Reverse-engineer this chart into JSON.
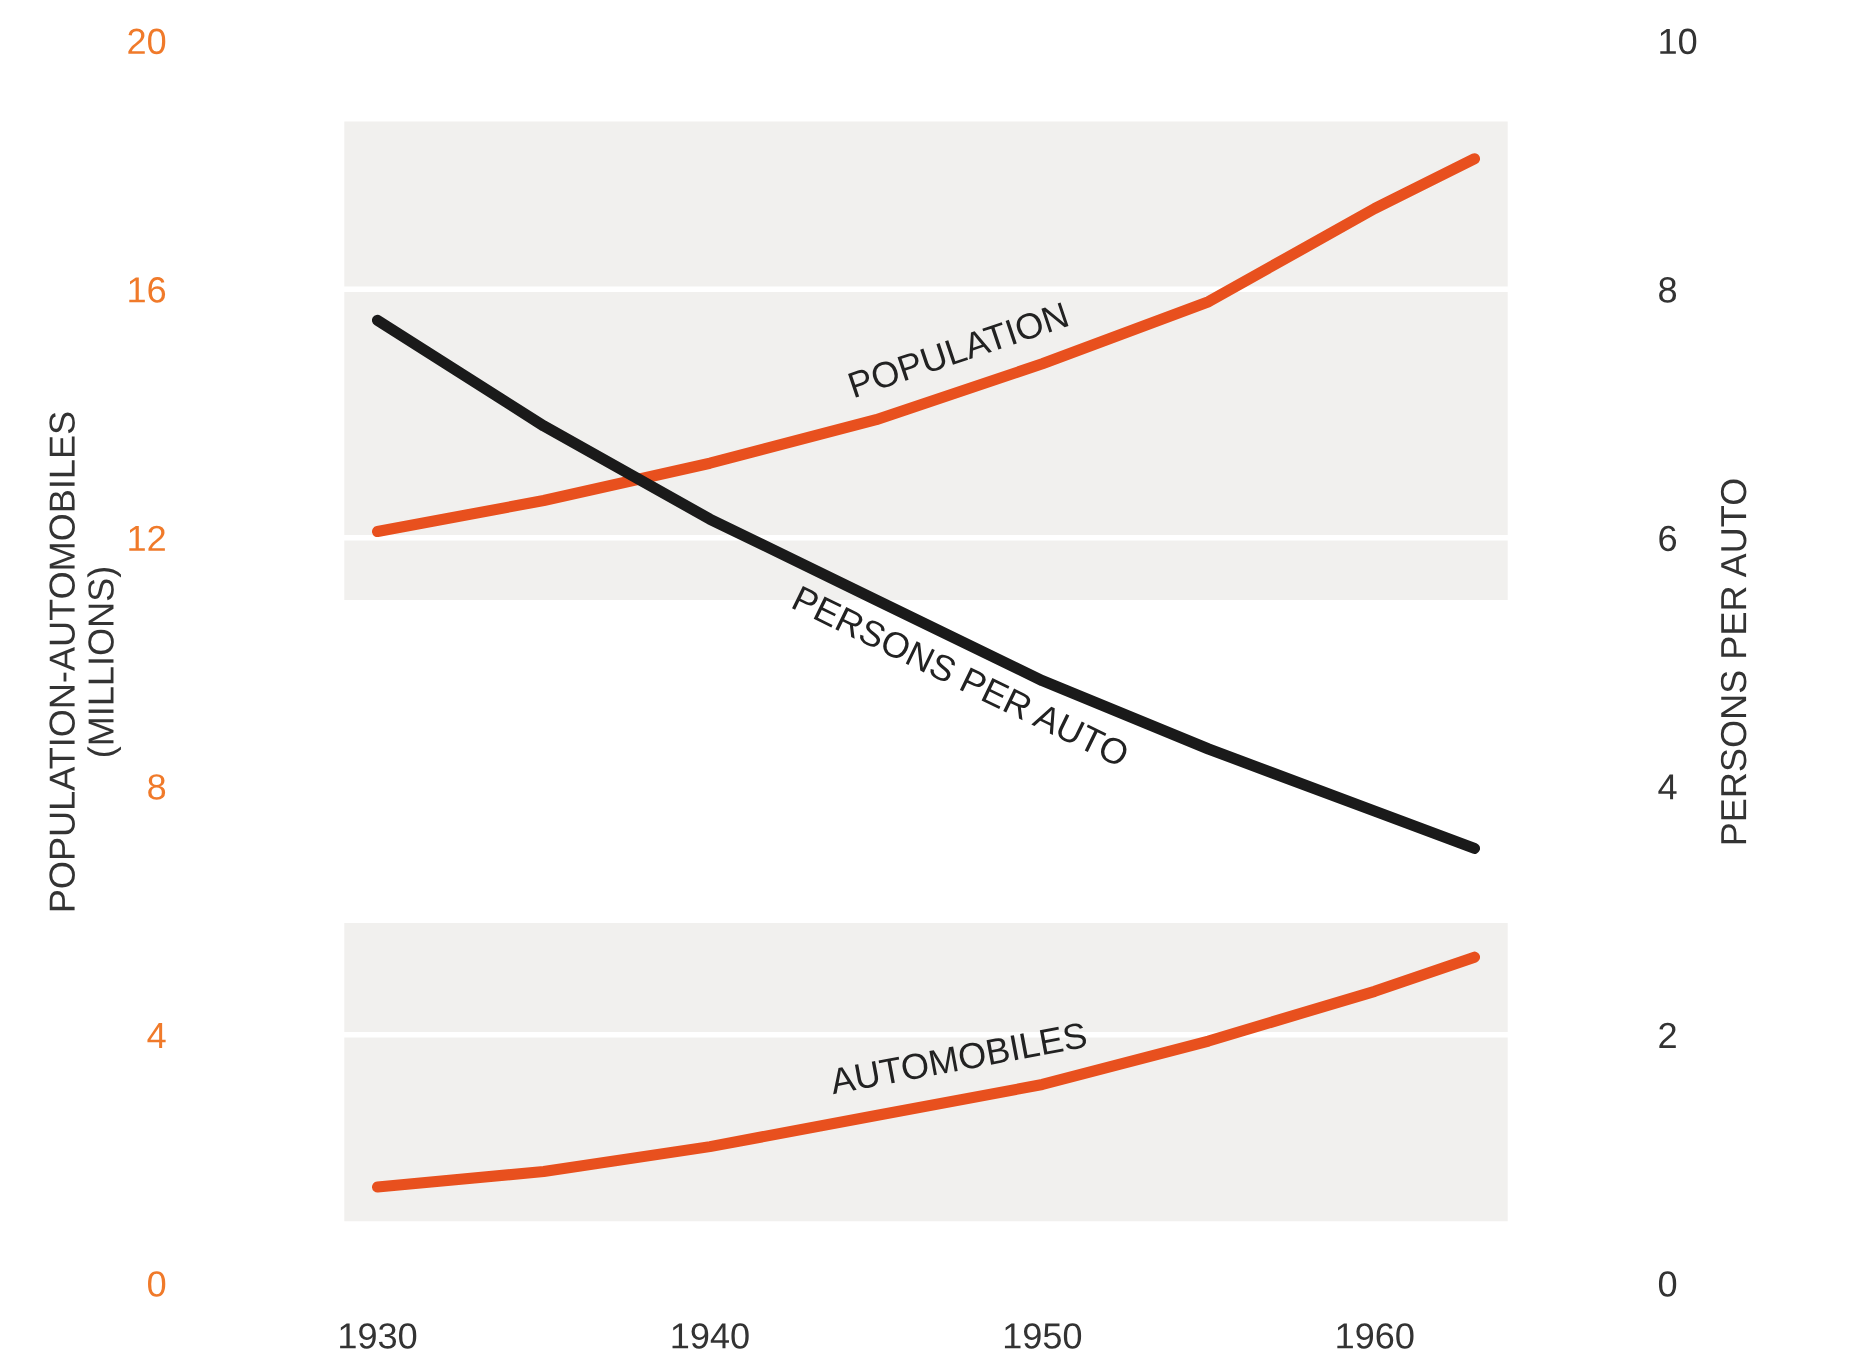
{
  "chart_data": {
    "type": "line",
    "ylabel": "POPULATION-AUTOMOBILES\n(MILLIONS)",
    "y2label": "PERSONS PER AUTO",
    "x": [
      1930,
      1935,
      1940,
      1945,
      1950,
      1955,
      1960,
      1963
    ],
    "xlim": [
      1927,
      1966
    ],
    "xticks": [
      1930,
      1940,
      1950,
      1960
    ],
    "ylim": [
      0,
      20
    ],
    "yticks": [
      0,
      4,
      8,
      12,
      16,
      20
    ],
    "y2lim": [
      0,
      10
    ],
    "y2ticks": [
      0,
      2,
      4,
      6,
      8,
      10
    ],
    "grid": "y",
    "legend": false,
    "marker": "none",
    "line_style": "solid",
    "series": [
      {
        "name": "POPULATION",
        "color": "#e8501e",
        "values": [
          12.1,
          12.6,
          13.2,
          13.9,
          14.8,
          15.8,
          17.3,
          18.1
        ]
      },
      {
        "name": "AUTOMOBILES",
        "color": "#e8501e",
        "values": [
          1.55,
          1.8,
          2.2,
          2.7,
          3.2,
          3.9,
          4.7,
          5.25
        ]
      },
      {
        "name": "PERSONS PER AUTO",
        "color": "#1a1a1a",
        "axis": "y2",
        "values": [
          7.75,
          6.9,
          6.15,
          5.5,
          4.85,
          4.3,
          3.8,
          3.5
        ]
      }
    ],
    "bands": [
      {
        "axis": "y",
        "from": 11,
        "to": 18.7,
        "color": "#f1f0ee"
      },
      {
        "axis": "y",
        "from": 1,
        "to": 5.8,
        "color": "#f1f0ee"
      }
    ]
  }
}
